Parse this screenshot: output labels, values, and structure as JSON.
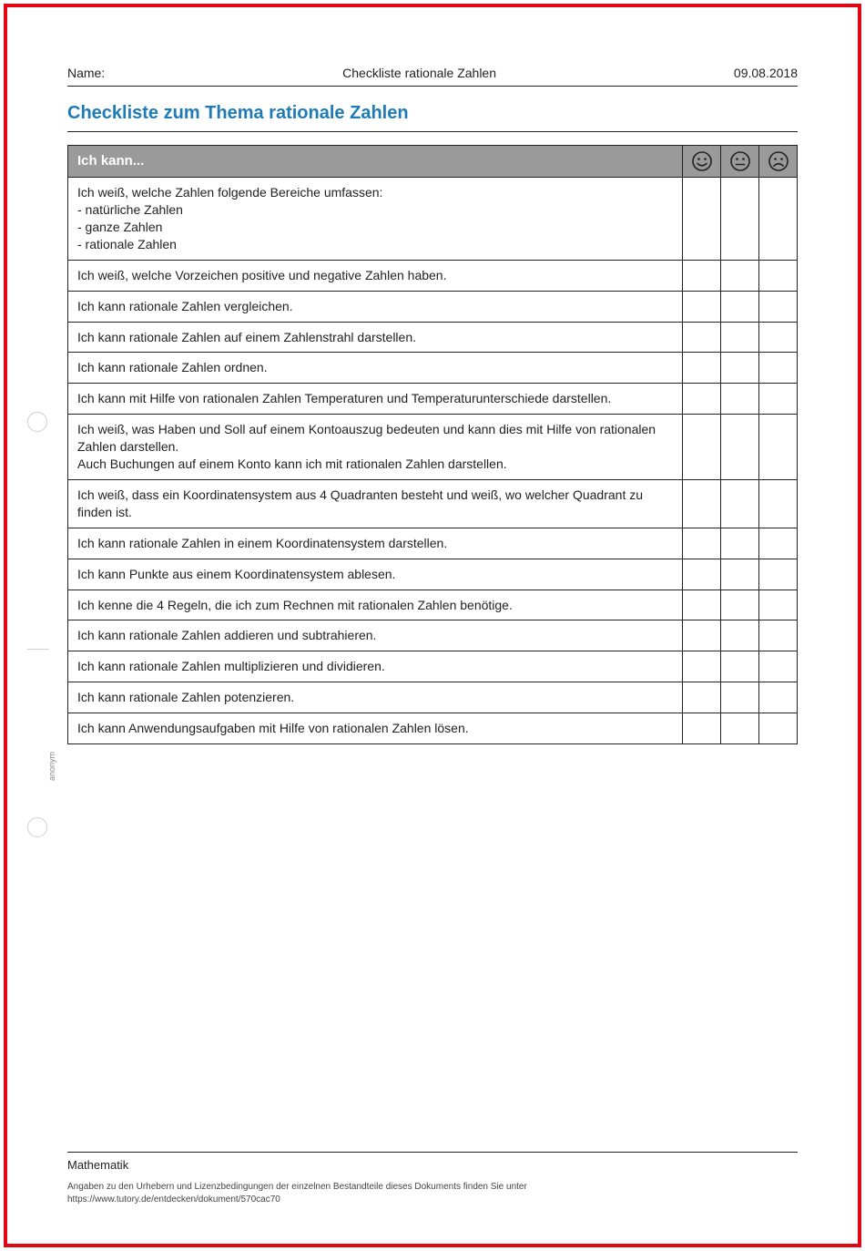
{
  "border_color": "#e30613",
  "header": {
    "name_label": "Name:",
    "center_title": "Checkliste rationale Zahlen",
    "date": "09.08.2018"
  },
  "title": "Checkliste zum Thema rationale Zahlen",
  "title_color": "#1f7bb6",
  "table": {
    "header_label": "Ich kann...",
    "header_bg": "#9a9a9a",
    "header_fg": "#ffffff",
    "border_color": "#222222",
    "text_color": "#222222",
    "font_size_pt": 10.5,
    "rows": [
      "Ich weiß, welche Zahlen folgende Bereiche umfassen:\n- natürliche Zahlen\n- ganze Zahlen\n- rationale Zahlen",
      "Ich weiß, welche Vorzeichen positive und negative Zahlen haben.",
      "Ich kann rationale Zahlen vergleichen.",
      "Ich kann rationale Zahlen auf einem Zahlenstrahl darstellen.",
      "Ich kann rationale Zahlen ordnen.",
      "Ich kann mit Hilfe von rationalen Zahlen Temperaturen und Temperaturunterschiede darstellen.",
      "Ich weiß, was Haben und Soll auf einem Kontoauszug bedeuten und kann dies mit Hilfe von rationalen Zahlen darstellen.\nAuch Buchungen auf einem Konto kann ich mit rationalen Zahlen darstellen.",
      "Ich weiß, dass ein Koordinatensystem aus 4 Quadranten besteht und weiß, wo welcher Quadrant zu finden ist.",
      "Ich kann rationale Zahlen in einem Koordinatensystem darstellen.",
      "Ich kann Punkte aus einem Koordinatensystem ablesen.",
      "Ich kenne die 4 Regeln, die ich zum Rechnen mit rationalen Zahlen benötige.",
      "Ich kann rationale Zahlen addieren und subtrahieren.",
      "Ich kann rationale Zahlen multiplizieren und dividieren.",
      "Ich kann rationale Zahlen potenzieren.",
      "Ich kann Anwendungsaufgaben mit Hilfe von rationalen Zahlen lösen."
    ]
  },
  "icons": {
    "happy": "smiley-happy-icon",
    "neutral": "smiley-neutral-icon",
    "sad": "smiley-sad-icon",
    "stroke": "#222222"
  },
  "side_label": "anonym",
  "footer": {
    "subject": "Mathematik",
    "attribution_line1": "Angaben zu den Urhebern und Lizenzbedingungen der einzelnen Bestandteile dieses Dokuments finden Sie unter",
    "attribution_line2": "https://www.tutory.de/entdecken/dokument/570cac70"
  }
}
